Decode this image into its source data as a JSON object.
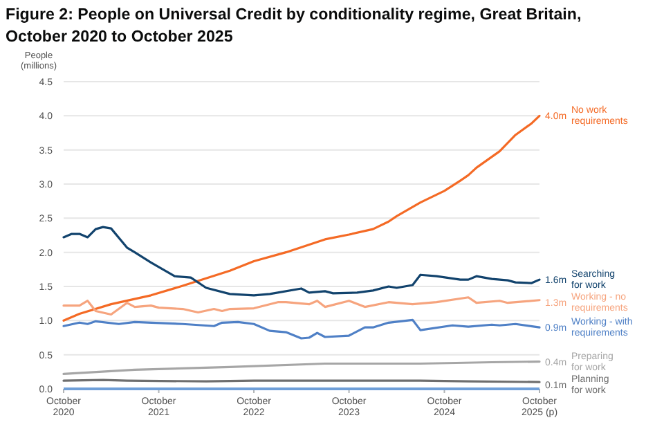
{
  "chart_data": {
    "type": "line",
    "title": "Figure 2: People on Universal Credit by conditionality regime, Great Britain,\nOctober 2020 to October 2025",
    "ylabel": "People\n(millions)",
    "xlim": [
      "2020-10",
      "2025-10"
    ],
    "xticks": [
      {
        "value": "2020-10",
        "label": "October\n2020"
      },
      {
        "value": "2021-10",
        "label": "October\n2021"
      },
      {
        "value": "2022-10",
        "label": "October\n2022"
      },
      {
        "value": "2023-10",
        "label": "October\n2023"
      },
      {
        "value": "2024-10",
        "label": "October\n2024"
      },
      {
        "value": "2025-10",
        "label": "October\n2025 (p)"
      }
    ],
    "ylim": [
      0,
      4.5
    ],
    "yticks": [
      {
        "value": 0,
        "label": "0.0"
      },
      {
        "value": 0.5,
        "label": "0.5"
      },
      {
        "value": 1,
        "label": "1.0"
      },
      {
        "value": 1.5,
        "label": "1.5"
      },
      {
        "value": 2,
        "label": "2.0"
      },
      {
        "value": 2.5,
        "label": "2.5"
      },
      {
        "value": 3,
        "label": "3.0"
      },
      {
        "value": 3.5,
        "label": "3.5"
      },
      {
        "value": 4,
        "label": "4.0"
      },
      {
        "value": 4.5,
        "label": "4.5"
      }
    ],
    "grid": "y",
    "line_style": "solid",
    "series": [
      {
        "name": "No work\nrequirements",
        "color": "#f46a25",
        "x": [
          "2020-10",
          "2020-12",
          "2021-04",
          "2021-09",
          "2022-01",
          "2022-07",
          "2022-10",
          "2023-02",
          "2023-07",
          "2023-10",
          "2024-01",
          "2024-03",
          "2024-04",
          "2024-07",
          "2024-10",
          "2024-12",
          "2025-01",
          "2025-02",
          "2025-05",
          "2025-07",
          "2025-09",
          "2025-10"
        ],
        "values": [
          1.0,
          1.1,
          1.24,
          1.37,
          1.51,
          1.73,
          1.87,
          2.0,
          2.19,
          2.26,
          2.34,
          2.45,
          2.53,
          2.73,
          2.9,
          3.05,
          3.13,
          3.24,
          3.48,
          3.72,
          3.89,
          4.0
        ]
      },
      {
        "name": "Searching\nfor work",
        "color": "#12436d",
        "x": [
          "2020-10",
          "2020-11",
          "2020-12",
          "2021-01",
          "2021-02",
          "2021-03",
          "2021-04",
          "2021-06",
          "2021-07",
          "2021-09",
          "2021-12",
          "2022-02",
          "2022-04",
          "2022-07",
          "2022-10",
          "2022-12",
          "2023-04",
          "2023-05",
          "2023-07",
          "2023-08",
          "2023-11",
          "2024-01",
          "2024-03",
          "2024-04",
          "2024-06",
          "2024-07",
          "2024-09",
          "2024-12",
          "2025-01",
          "2025-02",
          "2025-04",
          "2025-06",
          "2025-07",
          "2025-09",
          "2025-10"
        ],
        "values": [
          2.22,
          2.27,
          2.27,
          2.22,
          2.34,
          2.37,
          2.35,
          2.07,
          2.0,
          1.85,
          1.65,
          1.63,
          1.48,
          1.39,
          1.37,
          1.39,
          1.47,
          1.41,
          1.43,
          1.4,
          1.41,
          1.44,
          1.5,
          1.48,
          1.52,
          1.67,
          1.65,
          1.6,
          1.6,
          1.65,
          1.61,
          1.59,
          1.56,
          1.55,
          1.6
        ]
      },
      {
        "name": "Working - no\nrequirements",
        "color": "#f6a47e",
        "x": [
          "2020-10",
          "2020-12",
          "2021-01",
          "2021-02",
          "2021-04",
          "2021-06",
          "2021-07",
          "2021-09",
          "2021-10",
          "2022-01",
          "2022-03",
          "2022-05",
          "2022-06",
          "2022-07",
          "2022-10",
          "2023-01",
          "2023-02",
          "2023-05",
          "2023-06",
          "2023-07",
          "2023-10",
          "2023-12",
          "2024-03",
          "2024-06",
          "2024-09",
          "2025-01",
          "2025-02",
          "2025-05",
          "2025-06",
          "2025-10"
        ],
        "values": [
          1.22,
          1.22,
          1.29,
          1.14,
          1.09,
          1.26,
          1.2,
          1.22,
          1.19,
          1.17,
          1.12,
          1.17,
          1.14,
          1.17,
          1.18,
          1.27,
          1.27,
          1.24,
          1.29,
          1.2,
          1.29,
          1.2,
          1.27,
          1.24,
          1.27,
          1.34,
          1.26,
          1.29,
          1.26,
          1.3
        ]
      },
      {
        "name": "Working - with\nrequirements",
        "color": "#4f80c6",
        "x": [
          "2020-10",
          "2020-12",
          "2021-01",
          "2021-02",
          "2021-05",
          "2021-07",
          "2022-01",
          "2022-05",
          "2022-06",
          "2022-08",
          "2022-10",
          "2022-12",
          "2023-02",
          "2023-04",
          "2023-05",
          "2023-06",
          "2023-07",
          "2023-10",
          "2023-12",
          "2024-01",
          "2024-03",
          "2024-06",
          "2024-07",
          "2024-11",
          "2025-01",
          "2025-04",
          "2025-05",
          "2025-07",
          "2025-10"
        ],
        "values": [
          0.92,
          0.97,
          0.95,
          0.99,
          0.95,
          0.98,
          0.95,
          0.92,
          0.97,
          0.98,
          0.95,
          0.85,
          0.83,
          0.74,
          0.75,
          0.82,
          0.76,
          0.78,
          0.9,
          0.9,
          0.97,
          1.01,
          0.86,
          0.93,
          0.91,
          0.94,
          0.93,
          0.95,
          0.9
        ]
      },
      {
        "name": "Preparing\nfor work",
        "color": "#a6a6a6",
        "x": [
          "2020-10",
          "2021-07",
          "2022-07",
          "2023-07",
          "2024-07",
          "2025-04",
          "2025-10"
        ],
        "values": [
          0.22,
          0.28,
          0.32,
          0.37,
          0.37,
          0.39,
          0.4
        ]
      },
      {
        "name": "Planning\nfor work",
        "color": "#6e6e6e",
        "x": [
          "2020-10",
          "2021-03",
          "2021-06",
          "2022-04",
          "2022-10",
          "2024-07",
          "2025-01",
          "2025-10"
        ],
        "values": [
          0.12,
          0.13,
          0.12,
          0.11,
          0.12,
          0.12,
          0.11,
          0.1
        ]
      }
    ],
    "annotations": [
      {
        "text": "4.0m",
        "x": "2025-10",
        "y": 4.0
      },
      {
        "text": "1.6m",
        "x": "2025-10",
        "y": 1.6
      },
      {
        "text": "1.3m",
        "x": "2025-10",
        "y": 1.3
      },
      {
        "text": "0.9m",
        "x": "2025-10",
        "y": 0.9
      },
      {
        "text": "0.4m",
        "x": "2025-10",
        "y": 0.4
      },
      {
        "text": "0.1m",
        "x": "2025-10",
        "y": 0.1
      }
    ]
  }
}
